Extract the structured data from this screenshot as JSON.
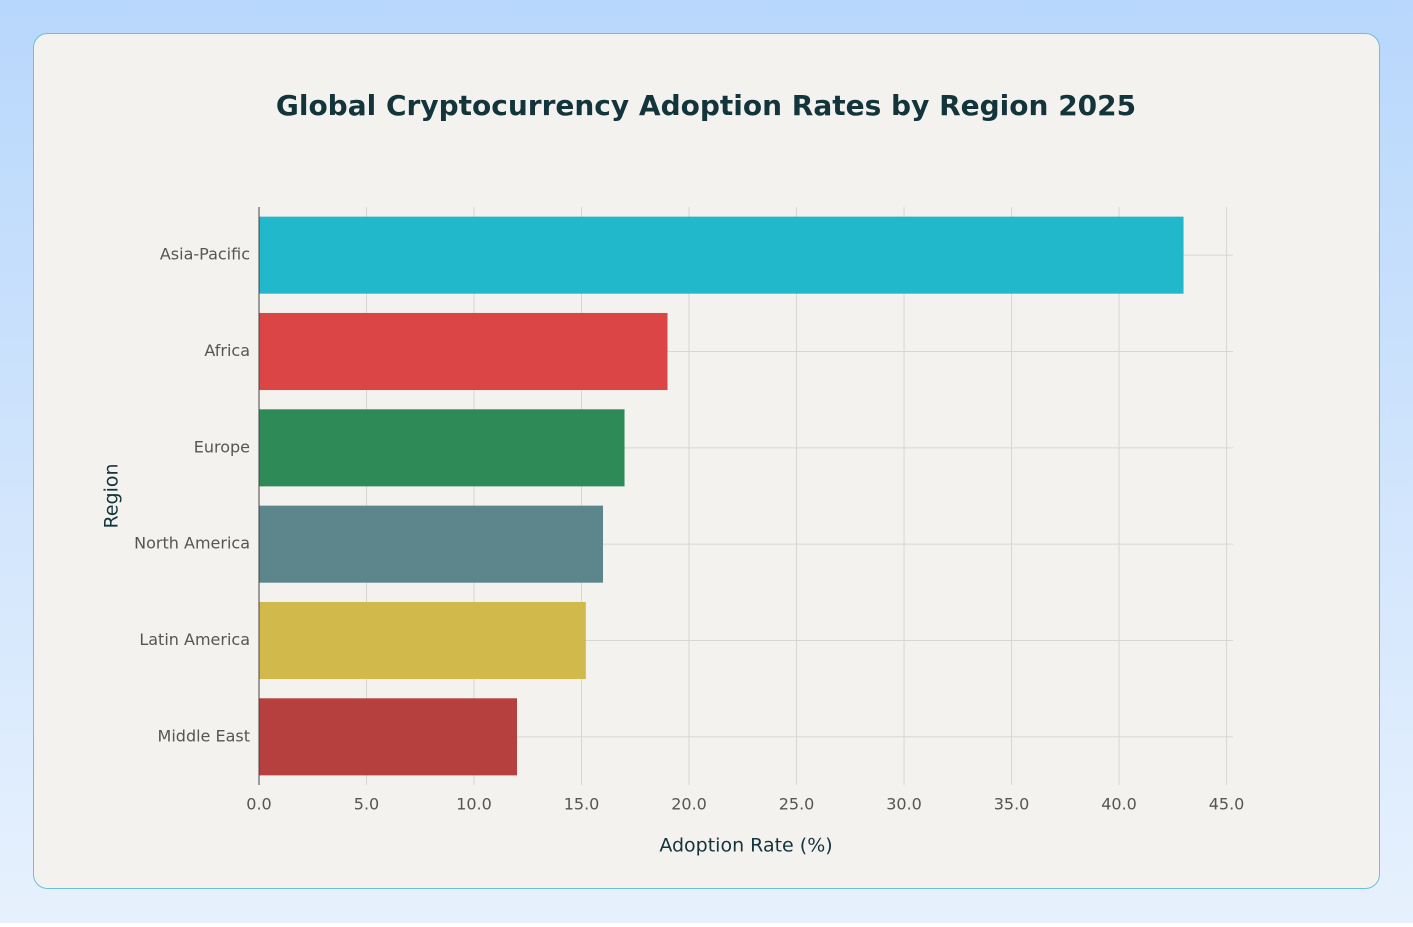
{
  "chart_data": {
    "type": "bar",
    "orientation": "horizontal",
    "title": "Global Cryptocurrency Adoption Rates by Region 2025",
    "xlabel": "Adoption Rate (%)",
    "ylabel": "Region",
    "categories": [
      "Asia-Pacific",
      "Africa",
      "Europe",
      "North America",
      "Latin America",
      "Middle East"
    ],
    "values": [
      43.0,
      19.0,
      17.0,
      16.0,
      15.2,
      12.0
    ],
    "colors": [
      "#21b8cc",
      "#db4546",
      "#2e8b57",
      "#5d868c",
      "#d2b94b",
      "#b5403e"
    ],
    "xlim": [
      0,
      45.3
    ],
    "xticks": [
      {
        "value": 0,
        "label": "0.0"
      },
      {
        "value": 5,
        "label": "5.0"
      },
      {
        "value": 10,
        "label": "10.0"
      },
      {
        "value": 15,
        "label": "15.0"
      },
      {
        "value": 20,
        "label": "20.0"
      },
      {
        "value": 25,
        "label": "25.0"
      },
      {
        "value": 30,
        "label": "30.0"
      },
      {
        "value": 35,
        "label": "35.0"
      },
      {
        "value": 40,
        "label": "40.0"
      },
      {
        "value": 45,
        "label": "45.0"
      }
    ],
    "grid": true
  }
}
